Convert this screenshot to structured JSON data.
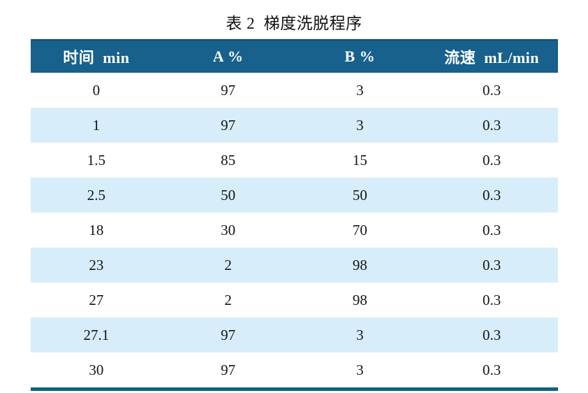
{
  "title": "表 2  梯度洗脱程序",
  "table": {
    "headers": [
      "时间  min",
      "A %",
      "B %",
      "流速  mL/min"
    ],
    "rows": [
      [
        "0",
        "97",
        "3",
        "0.3"
      ],
      [
        "1",
        "97",
        "3",
        "0.3"
      ],
      [
        "1.5",
        "85",
        "15",
        "0.3"
      ],
      [
        "2.5",
        "50",
        "50",
        "0.3"
      ],
      [
        "18",
        "30",
        "70",
        "0.3"
      ],
      [
        "23",
        "2",
        "98",
        "0.3"
      ],
      [
        "27",
        "2",
        "98",
        "0.3"
      ],
      [
        "27.1",
        "97",
        "3",
        "0.3"
      ],
      [
        "30",
        "97",
        "3",
        "0.3"
      ]
    ]
  },
  "colors": {
    "header_bg": "#17618c",
    "header_top": "#0d4d72",
    "header_text": "#ffffff",
    "row_alt_bg": "#d7edf9",
    "bottom_border": "#0e6380"
  },
  "chart_data": {
    "type": "table",
    "title": "表 2 梯度洗脱程序",
    "columns": [
      "时间 min",
      "A %",
      "B %",
      "流速 mL/min"
    ],
    "x": [
      0,
      1,
      1.5,
      2.5,
      18,
      23,
      27,
      27.1,
      30
    ],
    "series": [
      {
        "name": "A %",
        "values": [
          97,
          97,
          85,
          50,
          30,
          2,
          2,
          97,
          97
        ]
      },
      {
        "name": "B %",
        "values": [
          3,
          3,
          15,
          50,
          70,
          98,
          98,
          3,
          3
        ]
      },
      {
        "name": "流速 mL/min",
        "values": [
          0.3,
          0.3,
          0.3,
          0.3,
          0.3,
          0.3,
          0.3,
          0.3,
          0.3
        ]
      }
    ]
  }
}
